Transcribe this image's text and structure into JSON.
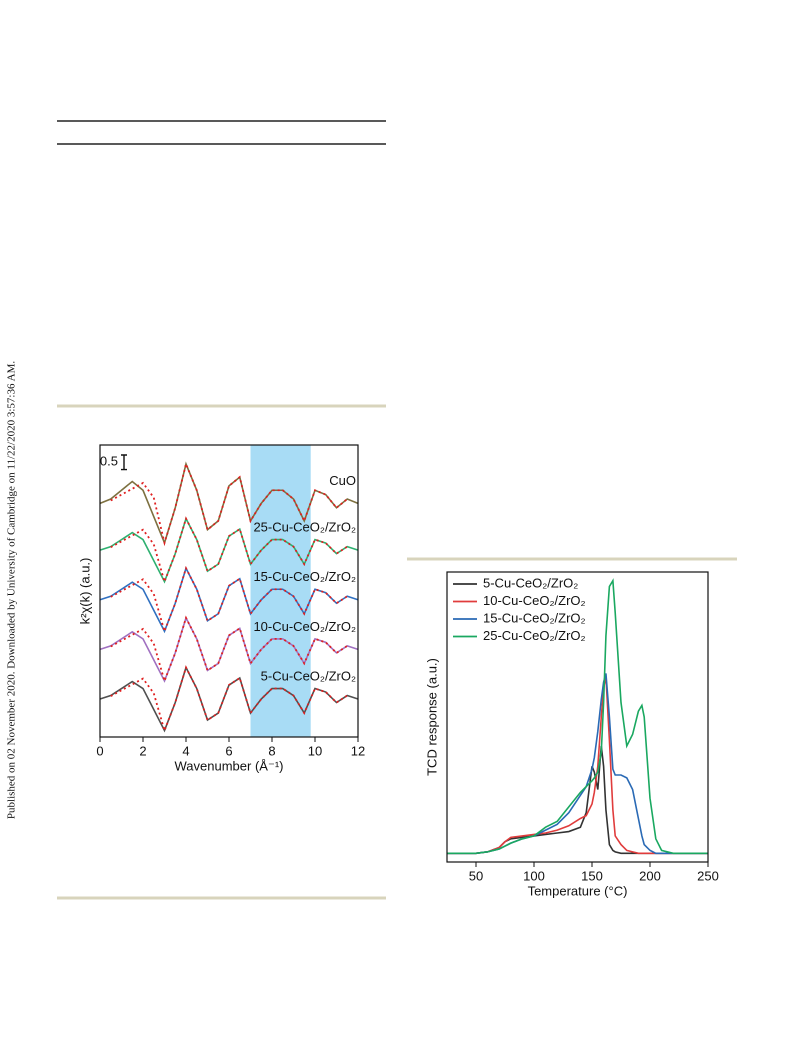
{
  "side_note": "Published on 02 November 2020. Downloaded by University of Cambridge on 11/22/2020 3:57:36 AM.",
  "chart_data": [
    {
      "type": "line",
      "xlabel": "Wavenumber (Å⁻¹)",
      "ylabel": "k²χ(k) (a.u.)",
      "xlim": [
        0,
        12
      ],
      "xticks": [
        0,
        2,
        4,
        6,
        8,
        10,
        12
      ],
      "ylim": [
        0,
        10
      ],
      "highlight": [
        7,
        9.8
      ],
      "highlight_color": "#a8dcf5",
      "scale_bar": 0.5,
      "fit_color": "#e02020",
      "x": [
        0,
        0.5,
        1,
        1.5,
        2,
        2.5,
        3,
        3.5,
        4,
        4.5,
        5,
        5.5,
        6,
        6.5,
        7,
        7.5,
        8,
        8.5,
        9,
        9.5,
        10,
        10.5,
        11,
        11.5,
        12
      ],
      "series": [
        {
          "name": "CuO",
          "color": "#7d7040",
          "values": [
            8.0,
            8.15,
            8.45,
            8.75,
            8.45,
            7.55,
            6.65,
            7.85,
            9.35,
            8.45,
            7.1,
            7.4,
            8.6,
            8.9,
            7.4,
            8.0,
            8.45,
            8.45,
            8.15,
            7.4,
            8.45,
            8.3,
            7.85,
            8.15,
            8.0
          ],
          "fit": [
            null,
            8.1,
            8.3,
            8.5,
            8.7,
            8.2,
            6.65,
            7.85,
            9.35,
            8.45,
            7.1,
            7.4,
            8.6,
            8.9,
            7.4,
            8.0,
            8.45,
            8.45,
            8.15,
            7.4,
            8.45,
            8.3,
            7.85,
            8.15,
            null
          ]
        },
        {
          "name": "25-Cu-CeO₂/ZrO₂",
          "color": "#2eb070",
          "values": [
            6.4,
            6.52,
            6.76,
            7.0,
            6.76,
            6.04,
            5.32,
            6.28,
            7.48,
            6.76,
            5.68,
            5.92,
            6.88,
            7.12,
            5.92,
            6.4,
            6.76,
            6.76,
            6.52,
            5.92,
            6.76,
            6.64,
            6.28,
            6.52,
            6.4
          ],
          "fit": [
            null,
            6.5,
            6.7,
            6.9,
            7.1,
            6.6,
            5.32,
            6.28,
            7.48,
            6.76,
            5.68,
            5.92,
            6.88,
            7.12,
            5.92,
            6.4,
            6.76,
            6.76,
            6.52,
            5.92,
            6.76,
            6.64,
            6.28,
            6.52,
            null
          ]
        },
        {
          "name": "15-Cu-CeO₂/ZrO₂",
          "color": "#3070c0",
          "values": [
            4.7,
            4.82,
            5.06,
            5.3,
            5.06,
            4.34,
            3.62,
            4.58,
            5.78,
            5.06,
            3.98,
            4.22,
            5.18,
            5.42,
            4.22,
            4.7,
            5.06,
            5.06,
            4.82,
            4.22,
            5.06,
            4.94,
            4.58,
            4.82,
            4.7
          ],
          "fit": [
            null,
            4.8,
            5.0,
            5.2,
            5.4,
            4.9,
            3.62,
            4.58,
            5.78,
            5.06,
            3.98,
            4.22,
            5.18,
            5.42,
            4.22,
            4.7,
            5.06,
            5.06,
            4.82,
            4.22,
            5.06,
            4.94,
            4.58,
            4.82,
            null
          ]
        },
        {
          "name": "10-Cu-CeO₂/ZrO₂",
          "color": "#a070c0",
          "values": [
            3.0,
            3.12,
            3.36,
            3.6,
            3.36,
            2.64,
            1.92,
            2.88,
            4.08,
            3.36,
            2.28,
            2.52,
            3.48,
            3.72,
            2.52,
            3.0,
            3.36,
            3.36,
            3.12,
            2.52,
            3.36,
            3.24,
            2.88,
            3.12,
            3.0
          ],
          "fit": [
            null,
            3.1,
            3.3,
            3.5,
            3.7,
            3.2,
            1.92,
            2.88,
            4.08,
            3.36,
            2.28,
            2.52,
            3.48,
            3.72,
            2.52,
            3.0,
            3.36,
            3.36,
            3.12,
            2.52,
            3.36,
            3.24,
            2.88,
            3.12,
            null
          ]
        },
        {
          "name": "5-Cu-CeO₂/ZrO₂",
          "color": "#505050",
          "values": [
            1.3,
            1.42,
            1.66,
            1.9,
            1.66,
            0.94,
            0.22,
            1.18,
            2.38,
            1.66,
            0.58,
            0.82,
            1.78,
            2.02,
            0.82,
            1.3,
            1.66,
            1.66,
            1.42,
            0.82,
            1.66,
            1.54,
            1.18,
            1.42,
            1.3
          ],
          "fit": [
            null,
            1.4,
            1.6,
            1.8,
            2.0,
            1.5,
            0.22,
            1.18,
            2.38,
            1.66,
            0.58,
            0.82,
            1.78,
            2.02,
            0.82,
            1.3,
            1.66,
            1.66,
            1.42,
            0.82,
            1.66,
            1.54,
            1.18,
            1.42,
            null
          ]
        }
      ]
    },
    {
      "type": "line",
      "xlabel": "Temperature (°C)",
      "ylabel": "TCD response (a.u.)",
      "xlim": [
        25,
        250
      ],
      "xticks": [
        50,
        100,
        150,
        200,
        250
      ],
      "ylim": [
        0,
        100
      ],
      "legend": "upper left",
      "x": [
        25,
        50,
        60,
        70,
        75,
        80,
        90,
        100,
        110,
        120,
        130,
        140,
        145,
        150,
        152,
        155,
        158,
        160,
        162,
        165,
        168,
        170,
        175,
        180,
        185,
        190,
        193,
        195,
        200,
        205,
        210,
        220,
        250
      ],
      "series": [
        {
          "name": "5-Cu-CeO₂/ZrO₂",
          "color": "#333333",
          "values": [
            3,
            3,
            3.5,
            5,
            7,
            8,
            8.5,
            9,
            9.5,
            10,
            10.5,
            12,
            17,
            33,
            31,
            25,
            40,
            33,
            18,
            6,
            4,
            3.5,
            3,
            3,
            3,
            3,
            3,
            3,
            3,
            3,
            3,
            3,
            3
          ]
        },
        {
          "name": "10-Cu-CeO₂/ZrO₂",
          "color": "#e03c3c",
          "values": [
            3,
            3,
            3.5,
            5,
            7,
            8.5,
            9,
            9.5,
            10,
            11,
            12.5,
            15,
            16,
            20,
            24,
            33,
            50,
            60,
            64,
            42,
            18,
            9,
            6,
            4,
            3.5,
            3,
            3,
            3,
            3,
            3,
            3,
            3,
            3
          ]
        },
        {
          "name": "15-Cu-CeO₂/ZrO₂",
          "color": "#2a6ab5",
          "values": [
            3,
            3,
            3.5,
            4.5,
            5.5,
            6.5,
            8,
            9,
            11,
            13,
            17,
            23,
            26,
            32,
            36,
            45,
            56,
            62,
            65,
            50,
            32,
            30,
            30,
            29,
            25,
            15,
            9,
            6,
            4,
            3,
            3,
            3,
            3
          ]
        },
        {
          "name": "25-Cu-CeO₂/ZrO₂",
          "color": "#1aa860",
          "values": [
            3,
            3,
            3.5,
            4.5,
            5.5,
            6.5,
            8,
            9,
            12,
            14,
            19,
            24,
            26,
            28,
            29,
            31,
            38,
            55,
            78,
            95,
            97,
            86,
            55,
            40,
            44,
            52,
            54,
            50,
            22,
            8,
            4,
            3,
            3
          ]
        }
      ]
    }
  ]
}
